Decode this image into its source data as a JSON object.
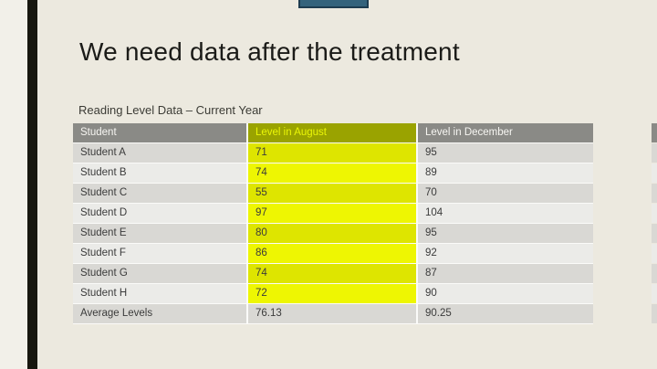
{
  "slide": {
    "title": "We need data after the treatment",
    "table_caption": "Reading Level Data – Current Year"
  },
  "table": {
    "headers": [
      "Student",
      "Level in August",
      "Level in December"
    ],
    "rows": [
      {
        "student": "Student A",
        "august": "71",
        "december": "95"
      },
      {
        "student": "Student B",
        "august": "74",
        "december": "89"
      },
      {
        "student": "Student C",
        "august": "55",
        "december": "70"
      },
      {
        "student": "Student D",
        "august": "97",
        "december": "104"
      },
      {
        "student": "Student E",
        "august": "80",
        "december": "95"
      },
      {
        "student": "Student F",
        "august": "86",
        "december": "92"
      },
      {
        "student": "Student G",
        "august": "74",
        "december": "87"
      },
      {
        "student": "Student H",
        "august": "72",
        "december": "90"
      },
      {
        "student": "Average Levels",
        "august": "76.13",
        "december": "90.25",
        "is_summary": true
      }
    ]
  },
  "colors": {
    "outer_background": "#f2f0e9",
    "slide_background": "#ece9df",
    "sidebar_bar": "#17170f",
    "top_tab_fill": "#34637c",
    "top_tab_border": "#1d3c50",
    "header_gray": "#8a8a86",
    "header_olive": "#9aa300",
    "header_august_text": "#eaf607",
    "row_dark": "#d9d8d4",
    "row_light": "#ebebe8",
    "august_highlight_dark": "#dee500",
    "august_highlight_light": "#eef602",
    "cell_text": "#3b3b3b",
    "title_text": "#1b1b18"
  }
}
